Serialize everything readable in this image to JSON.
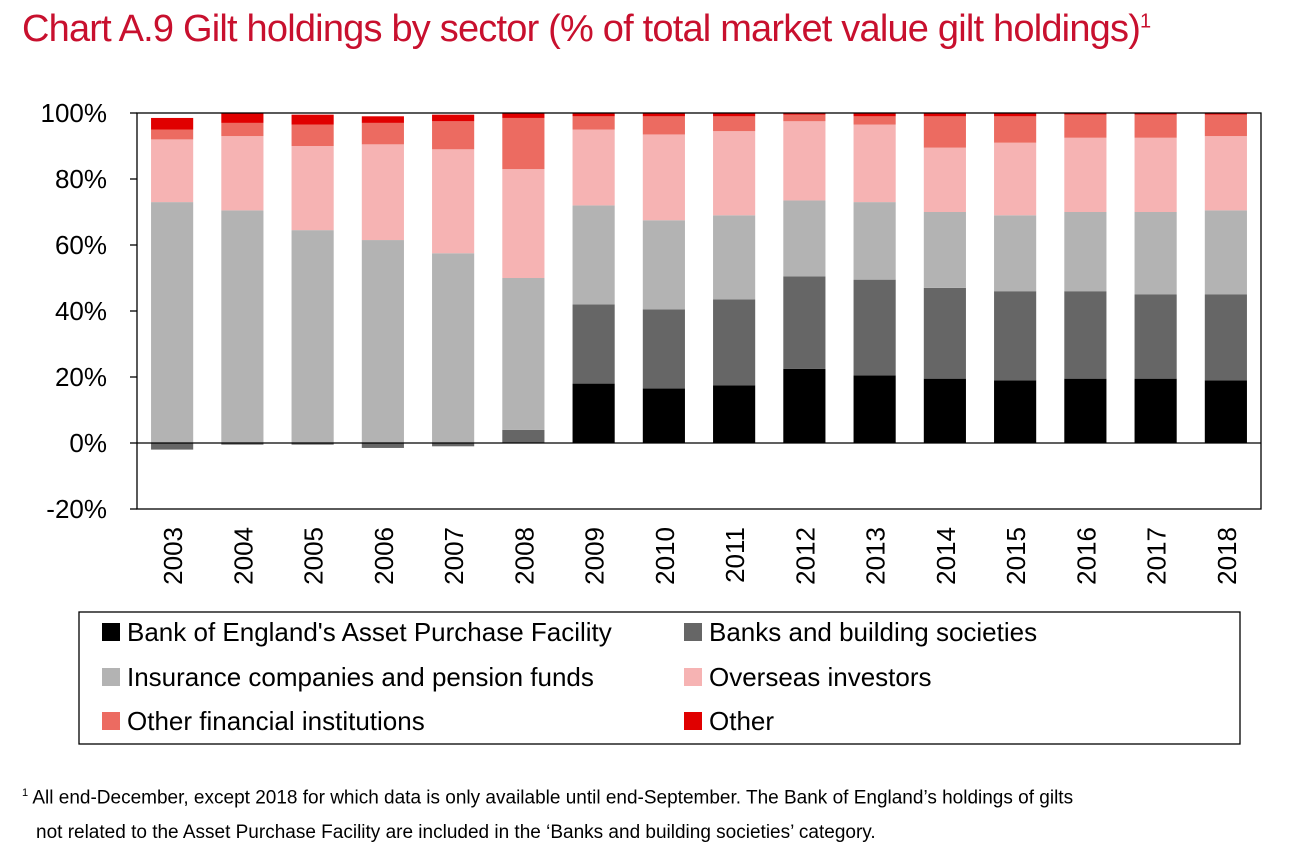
{
  "title": {
    "text": "Chart A.9 Gilt holdings by sector (% of total market value gilt holdings)",
    "footnote_marker": "1"
  },
  "footnote": {
    "marker": "1",
    "line1": "All end-December, except 2018 for which data is only available until end-September. The Bank of England’s holdings of gilts",
    "line2": "not related to the Asset Purchase Facility are included in the ‘Banks and building societies’ category."
  },
  "chart_data": {
    "type": "bar",
    "stacked": true,
    "title": "Gilt holdings by sector (% of total market value gilt holdings)",
    "xlabel": "",
    "ylabel": "",
    "ylim": [
      -20,
      100
    ],
    "yticks": [
      -20,
      0,
      20,
      40,
      60,
      80,
      100
    ],
    "ytick_labels": [
      "-20%",
      "0%",
      "20%",
      "40%",
      "60%",
      "80%",
      "100%"
    ],
    "grid": false,
    "legend_position": "bottom",
    "categories": [
      "2003",
      "2004",
      "2005",
      "2006",
      "2007",
      "2008",
      "2009",
      "2010",
      "2011",
      "2012",
      "2013",
      "2014",
      "2015",
      "2016",
      "2017",
      "2018"
    ],
    "series": [
      {
        "name": "Bank of England's Asset Purchase Facility",
        "color": "#000000",
        "values": [
          0,
          0,
          0,
          0,
          0,
          0,
          18,
          16.5,
          17.5,
          22.5,
          20.5,
          19.5,
          19,
          19.5,
          19.5,
          19
        ]
      },
      {
        "name": "Banks and building societies",
        "color": "#666666",
        "values": [
          -2,
          -0.5,
          -0.5,
          -1.5,
          -1,
          4,
          24,
          24,
          26,
          28,
          29,
          27.5,
          27,
          26.5,
          25.5,
          26
        ]
      },
      {
        "name": "Insurance companies and pension funds",
        "color": "#b3b3b3",
        "values": [
          73,
          70.5,
          64.5,
          61.5,
          57.5,
          46,
          30,
          27,
          25.5,
          23,
          23.5,
          23,
          23,
          24,
          25,
          25.5
        ]
      },
      {
        "name": "Overseas investors",
        "color": "#f6b3b3",
        "values": [
          19,
          22.5,
          25.5,
          29,
          31.5,
          33,
          23,
          26,
          25.5,
          24,
          23.5,
          19.5,
          22,
          22.5,
          22.5,
          22.5
        ]
      },
      {
        "name": "Other financial institutions",
        "color": "#ec6b61",
        "values": [
          3,
          4,
          6.5,
          6.5,
          8.5,
          15.5,
          4,
          5.5,
          4.5,
          2,
          2.5,
          9.5,
          8,
          7,
          7,
          6.5
        ]
      },
      {
        "name": "Other",
        "color": "#e00000",
        "values": [
          3.5,
          3,
          3,
          2,
          2,
          1.5,
          1,
          1,
          1,
          0.5,
          1,
          1,
          1,
          0.5,
          0.5,
          0.5
        ]
      }
    ]
  }
}
